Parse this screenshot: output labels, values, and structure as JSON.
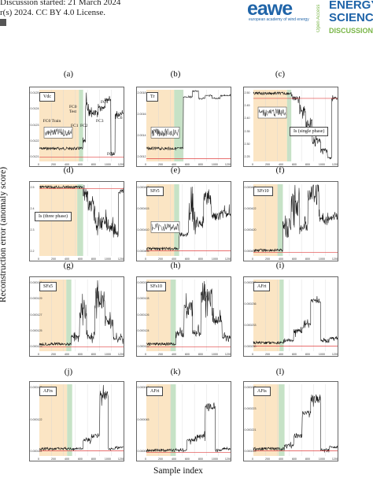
{
  "header": {
    "line1": "Discussion started: 21 March 2024",
    "line2": "r(s) 2024. CC BY 4.0 License."
  },
  "logo": {
    "brand": "eawe",
    "brand_sub": "european academy of wind energy",
    "open_access": "Open Access",
    "journal_line1": "ENERGY",
    "journal_line2": "SCIENCE",
    "journal_line3": "DISCUSSIONS"
  },
  "colors": {
    "baseline_region": "#fbe5c4",
    "transition_region": "#c6e2c6",
    "signal": "#111111",
    "threshold": "#e04040",
    "logo_blue": "#1f64a8",
    "logo_green": "#7ab648"
  },
  "figure": {
    "ylabel": "Reconstruction error (anomaly score)",
    "xlabel": "Sample index",
    "labels": [
      "(a)",
      "(b)",
      "(c)",
      "(d)",
      "(e)",
      "(f)",
      "(g)",
      "(h)",
      "(i)",
      "(j)",
      "(k)",
      "(l)"
    ],
    "panels": [
      {
        "id": "Vdc",
        "legend": "Vdc",
        "annotations": [
          "FC0 Train",
          "FC0 Test",
          "FC1",
          "FC2",
          "FC3",
          "FC4",
          "FC5",
          "FC6"
        ]
      },
      {
        "id": "Tr",
        "legend": "Tr",
        "annotations": []
      },
      {
        "id": "Is_single",
        "legend": "Is (single phase)",
        "annotations": []
      },
      {
        "id": "Is_three",
        "legend": "Is (three phase)",
        "annotations": []
      },
      {
        "id": "SFr5",
        "legend": "SFr5",
        "annotations": []
      },
      {
        "id": "SFr10",
        "legend": "SFr10",
        "annotations": []
      },
      {
        "id": "SFs5",
        "legend": "SFs5",
        "annotations": []
      },
      {
        "id": "SFs10",
        "legend": "SFs10",
        "annotations": []
      },
      {
        "id": "AFrt",
        "legend": "AFrt",
        "annotations": []
      },
      {
        "id": "AFrs",
        "legend": "AFrs",
        "annotations": []
      },
      {
        "id": "AFrt2",
        "legend": "AFrt",
        "annotations": []
      },
      {
        "id": "AFts",
        "legend": "AFts",
        "annotations": []
      }
    ]
  },
  "chart_data": [
    {
      "type": "line",
      "legend": "Vdc",
      "x_ticks": [
        "0",
        "200",
        "400",
        "600",
        "800",
        "1000",
        "1200"
      ],
      "y_ticks": [
        "0.0125",
        "0.0124",
        "0.0123",
        "0.0122",
        "0.0121"
      ],
      "segments": [
        {
          "label": "FC0 Train",
          "level": 0.012065
        },
        {
          "label": "FC0 Test",
          "level": 0.012065
        },
        {
          "label": "FC1",
          "level": 0.01226
        },
        {
          "label": "FC2",
          "level": 0.01225
        },
        {
          "label": "FC3",
          "level": 0.01229
        },
        {
          "label": "FC4",
          "level": 0.01234
        },
        {
          "label": "FC5",
          "level": 0.01205
        },
        {
          "label": "FC6",
          "level": 0.01223
        }
      ]
    },
    {
      "type": "line",
      "legend": "Tr",
      "x_ticks": [
        "0",
        "200",
        "400",
        "600",
        "800",
        "1000",
        "1200"
      ],
      "y_ticks": [
        "2.0018",
        "2.0016",
        "2.0014",
        "2.0012"
      ]
    },
    {
      "type": "line",
      "legend": "Is (single phase)",
      "x_ticks": [
        "0",
        "200",
        "400",
        "600",
        "800",
        "1000",
        "1200"
      ],
      "y_ticks": [
        "2.50",
        "2.45",
        "2.40",
        "2.35",
        "2.30",
        "2.25"
      ]
    },
    {
      "type": "line",
      "legend": "Is (three phase)",
      "x_ticks": [
        "0",
        "200",
        "400",
        "600",
        "800",
        "1000",
        "1200"
      ],
      "y_ticks": [
        "2.5",
        "2.4",
        "2.3",
        "2.2"
      ]
    },
    {
      "type": "line",
      "legend": "SFr5",
      "x_ticks": [
        "0",
        "200",
        "400",
        "600",
        "800",
        "1000",
        "1200"
      ],
      "y_ticks": [
        "0.000420",
        "0.000415",
        "0.000410",
        "0.000405"
      ]
    },
    {
      "type": "line",
      "legend": "SFr10",
      "x_ticks": [
        "0",
        "200",
        "400",
        "600",
        "800",
        "1000",
        "1200"
      ],
      "y_ticks": [
        "0.000424",
        "0.000422",
        "0.000420",
        "0.000418"
      ]
    },
    {
      "type": "line",
      "legend": "SFs5",
      "x_ticks": [
        "0",
        "200",
        "400",
        "600",
        "800",
        "1000",
        "1200"
      ],
      "y_ticks": [
        "0.000131",
        "0.000129",
        "0.000127",
        "0.000125",
        "0.000123"
      ]
    },
    {
      "type": "line",
      "legend": "SFs10",
      "x_ticks": [
        "0",
        "200",
        "400",
        "600",
        "800",
        "1000",
        "1200"
      ],
      "y_ticks": [
        "0.000130",
        "0.000128",
        "0.000126",
        "0.000124",
        "0.000122"
      ]
    },
    {
      "type": "line",
      "legend": "AFrt",
      "x_ticks": [
        "0",
        "200",
        "400",
        "600",
        "800",
        "1000",
        "1200"
      ],
      "y_ticks": [
        "0.000239",
        "0.000236",
        "0.000233",
        "0.000230"
      ]
    },
    {
      "type": "line",
      "legend": "AFrs",
      "x_ticks": [
        "0",
        "200",
        "400",
        "600",
        "800",
        "1000",
        "1200"
      ],
      "y_ticks": [
        "0.000125",
        "0.000122",
        "0.000119"
      ]
    },
    {
      "type": "line",
      "legend": "AFrt",
      "x_ticks": [
        "0",
        "200",
        "400",
        "600",
        "800",
        "1000",
        "1200"
      ],
      "y_ticks": [
        "0.000046",
        "0.000045",
        "0.000044"
      ]
    },
    {
      "type": "line",
      "legend": "AFts",
      "x_ticks": [
        "0",
        "200",
        "400",
        "600",
        "800",
        "1000",
        "1200"
      ],
      "y_ticks": [
        "0.000225",
        "0.000223",
        "0.000221",
        "0.000219"
      ]
    }
  ]
}
